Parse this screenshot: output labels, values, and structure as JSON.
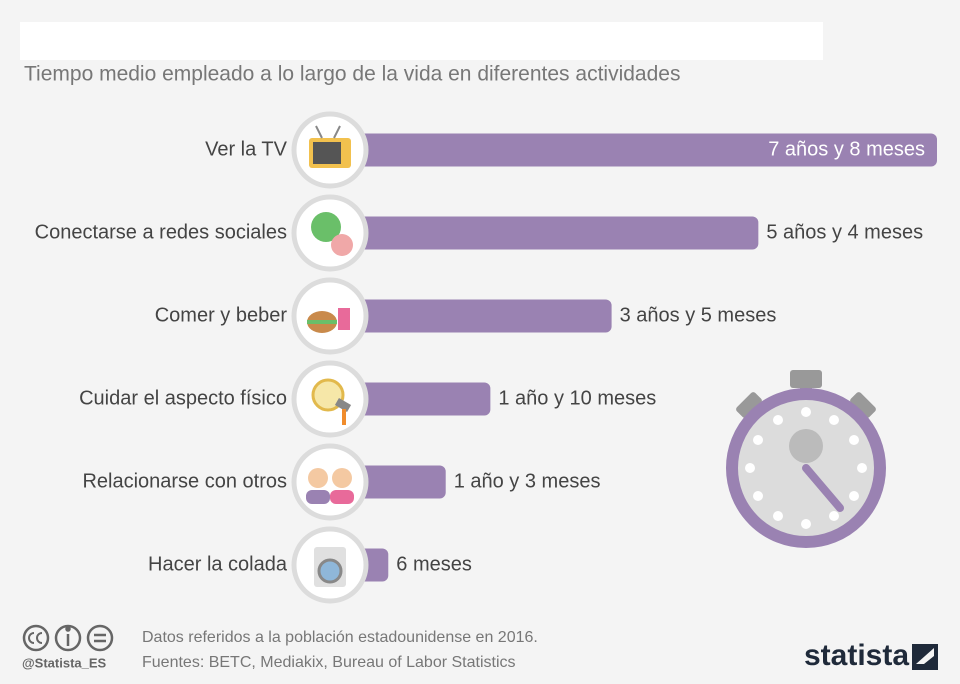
{
  "chart_data": {
    "type": "bar",
    "title": "Tiempo medio empleado a lo largo de la vida en diferentes actividades",
    "categories": [
      "Ver la TV",
      "Conectarse a redes sociales",
      "Comer y beber",
      "Cuidar el aspecto físico",
      "Relacionarse con otros",
      "Hacer la colada"
    ],
    "values": [
      92,
      64,
      41,
      22,
      15,
      6
    ],
    "value_labels": [
      "7 años y 8 meses",
      "5 años y 4 meses",
      "3 años y 5 meses",
      "1 año y 10 meses",
      "1 año y 3 meses",
      "6 meses"
    ],
    "color": "#9a82b2",
    "footer": {
      "note": "Datos referidos a la población estadounidense en 2016.",
      "sources": "Fuentes: BETC, Mediakix, Bureau of Labor Statistics",
      "account": "@Statista_ES",
      "brand": "statista"
    }
  }
}
